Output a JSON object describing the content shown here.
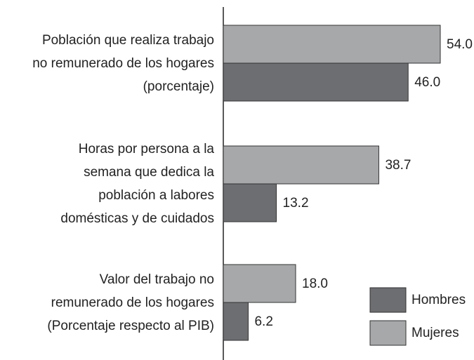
{
  "chart_data": {
    "type": "hbar",
    "categories": [
      "Población que realiza trabajo\nno remunerado de los hogares\n(porcentaje)",
      "Horas por persona a la\nsemana que dedica la\npoblación a labores\ndomésticas y de cuidados",
      "Valor del trabajo no\nremunerado de los hogares\n(Porcentaje respecto al PIB)"
    ],
    "series": [
      {
        "name": "Hombres",
        "color": "#6d6e71",
        "values": [
          46,
          13.2,
          6.2
        ],
        "value_labels": [
          "46.0",
          "13.2",
          "6.2"
        ]
      },
      {
        "name": "Mujeres",
        "color": "#a7a8aa",
        "values": [
          54,
          38.7,
          18
        ],
        "value_labels": [
          "54.0",
          "38.7",
          "18.0"
        ]
      }
    ],
    "legend": "lower right"
  }
}
